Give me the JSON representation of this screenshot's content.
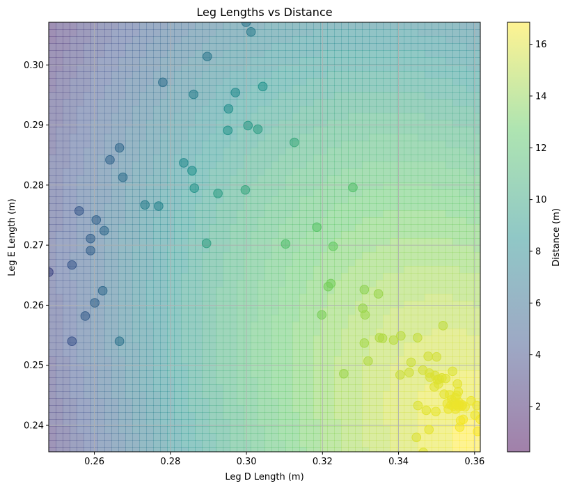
{
  "chart_data": {
    "type": "scatter",
    "title": "Leg Lengths vs Distance",
    "xlabel": "Leg D Length (m)",
    "ylabel": "Leg E Length (m)",
    "colorbar_label": "Distance (m)",
    "xlim": [
      0.248,
      0.3615
    ],
    "ylim": [
      0.2356,
      0.3071
    ],
    "clim": [
      0.25,
      16.85
    ],
    "x_ticks": [
      0.26,
      0.28,
      0.3,
      0.32,
      0.34,
      0.36
    ],
    "x_tick_labels": [
      "0.26",
      "0.28",
      "0.30",
      "0.32",
      "0.34",
      "0.36"
    ],
    "y_ticks": [
      0.24,
      0.25,
      0.26,
      0.27,
      0.28,
      0.29,
      0.3
    ],
    "y_tick_labels": [
      "0.24",
      "0.25",
      "0.26",
      "0.27",
      "0.28",
      "0.29",
      "0.30"
    ],
    "colorbar_ticks": [
      2,
      4,
      6,
      8,
      10,
      12,
      14,
      16
    ],
    "colorbar_tick_labels": [
      "2",
      "4",
      "6",
      "8",
      "10",
      "12",
      "14",
      "16"
    ],
    "colormap": "viridis",
    "colormap_stops": [
      "#440154",
      "#3b528b",
      "#21908d",
      "#5dc963",
      "#fde725"
    ],
    "grid": true,
    "points": [
      {
        "x": 0.248,
        "y": 0.2655
      },
      {
        "x": 0.2541,
        "y": 0.254
      },
      {
        "x": 0.2541,
        "y": 0.2667
      },
      {
        "x": 0.256,
        "y": 0.2757
      },
      {
        "x": 0.2576,
        "y": 0.2582
      },
      {
        "x": 0.259,
        "y": 0.2711
      },
      {
        "x": 0.259,
        "y": 0.2691
      },
      {
        "x": 0.2601,
        "y": 0.2604
      },
      {
        "x": 0.2605,
        "y": 0.2742
      },
      {
        "x": 0.2622,
        "y": 0.2624
      },
      {
        "x": 0.2626,
        "y": 0.2724
      },
      {
        "x": 0.2641,
        "y": 0.2842
      },
      {
        "x": 0.2666,
        "y": 0.2862
      },
      {
        "x": 0.2666,
        "y": 0.254
      },
      {
        "x": 0.2675,
        "y": 0.2813
      },
      {
        "x": 0.2733,
        "y": 0.2767
      },
      {
        "x": 0.2769,
        "y": 0.2765
      },
      {
        "x": 0.278,
        "y": 0.2971
      },
      {
        "x": 0.2835,
        "y": 0.2837
      },
      {
        "x": 0.2857,
        "y": 0.2824
      },
      {
        "x": 0.2861,
        "y": 0.2951
      },
      {
        "x": 0.2863,
        "y": 0.2795
      },
      {
        "x": 0.2895,
        "y": 0.2703
      },
      {
        "x": 0.2897,
        "y": 0.3014
      },
      {
        "x": 0.2925,
        "y": 0.2786
      },
      {
        "x": 0.2951,
        "y": 0.2891
      },
      {
        "x": 0.2953,
        "y": 0.2927
      },
      {
        "x": 0.2971,
        "y": 0.2954
      },
      {
        "x": 0.2997,
        "y": 0.2792
      },
      {
        "x": 0.2999,
        "y": 0.3071
      },
      {
        "x": 0.3004,
        "y": 0.2899
      },
      {
        "x": 0.3012,
        "y": 0.3055
      },
      {
        "x": 0.303,
        "y": 0.2893
      },
      {
        "x": 0.3043,
        "y": 0.2964
      },
      {
        "x": 0.3103,
        "y": 0.2702
      },
      {
        "x": 0.3126,
        "y": 0.2871
      },
      {
        "x": 0.3185,
        "y": 0.273
      },
      {
        "x": 0.3198,
        "y": 0.2584
      },
      {
        "x": 0.3215,
        "y": 0.2631
      },
      {
        "x": 0.3222,
        "y": 0.2636
      },
      {
        "x": 0.3228,
        "y": 0.2698
      },
      {
        "x": 0.3256,
        "y": 0.2486
      },
      {
        "x": 0.328,
        "y": 0.2796
      },
      {
        "x": 0.3306,
        "y": 0.2595
      },
      {
        "x": 0.331,
        "y": 0.2626
      },
      {
        "x": 0.331,
        "y": 0.2537
      },
      {
        "x": 0.3312,
        "y": 0.2584
      },
      {
        "x": 0.332,
        "y": 0.2507
      },
      {
        "x": 0.3347,
        "y": 0.2619
      },
      {
        "x": 0.335,
        "y": 0.2546
      },
      {
        "x": 0.3358,
        "y": 0.2545
      },
      {
        "x": 0.3387,
        "y": 0.2542
      },
      {
        "x": 0.3404,
        "y": 0.2484
      },
      {
        "x": 0.3406,
        "y": 0.2549
      },
      {
        "x": 0.3428,
        "y": 0.2488
      },
      {
        "x": 0.3433,
        "y": 0.2505
      },
      {
        "x": 0.3447,
        "y": 0.238
      },
      {
        "x": 0.345,
        "y": 0.2546
      },
      {
        "x": 0.3451,
        "y": 0.2433
      },
      {
        "x": 0.3464,
        "y": 0.2492
      },
      {
        "x": 0.3465,
        "y": 0.2355
      },
      {
        "x": 0.3473,
        "y": 0.2425
      },
      {
        "x": 0.3478,
        "y": 0.2515
      },
      {
        "x": 0.348,
        "y": 0.2393
      },
      {
        "x": 0.3481,
        "y": 0.2487
      },
      {
        "x": 0.3483,
        "y": 0.248
      },
      {
        "x": 0.3494,
        "y": 0.2464
      },
      {
        "x": 0.3496,
        "y": 0.2483
      },
      {
        "x": 0.3498,
        "y": 0.2423
      },
      {
        "x": 0.35,
        "y": 0.2514
      },
      {
        "x": 0.3502,
        "y": 0.2476
      },
      {
        "x": 0.3505,
        "y": 0.2469
      },
      {
        "x": 0.3507,
        "y": 0.2477
      },
      {
        "x": 0.3514,
        "y": 0.2479
      },
      {
        "x": 0.3517,
        "y": 0.2566
      },
      {
        "x": 0.352,
        "y": 0.2452
      },
      {
        "x": 0.3524,
        "y": 0.2478
      },
      {
        "x": 0.3528,
        "y": 0.2436
      },
      {
        "x": 0.3531,
        "y": 0.2427
      },
      {
        "x": 0.3534,
        "y": 0.2451
      },
      {
        "x": 0.3538,
        "y": 0.2434
      },
      {
        "x": 0.354,
        "y": 0.2443
      },
      {
        "x": 0.3542,
        "y": 0.249
      },
      {
        "x": 0.3544,
        "y": 0.2432
      },
      {
        "x": 0.3547,
        "y": 0.2437
      },
      {
        "x": 0.3549,
        "y": 0.2446
      },
      {
        "x": 0.355,
        "y": 0.2427
      },
      {
        "x": 0.3552,
        "y": 0.2434
      },
      {
        "x": 0.3553,
        "y": 0.245
      },
      {
        "x": 0.3555,
        "y": 0.2469
      },
      {
        "x": 0.3556,
        "y": 0.2434
      },
      {
        "x": 0.3557,
        "y": 0.2456
      },
      {
        "x": 0.3558,
        "y": 0.2431
      },
      {
        "x": 0.3559,
        "y": 0.2438
      },
      {
        "x": 0.356,
        "y": 0.2434
      },
      {
        "x": 0.3561,
        "y": 0.2397
      },
      {
        "x": 0.3563,
        "y": 0.2408
      },
      {
        "x": 0.3566,
        "y": 0.2432
      },
      {
        "x": 0.3568,
        "y": 0.2434
      },
      {
        "x": 0.357,
        "y": 0.241
      },
      {
        "x": 0.3575,
        "y": 0.2431
      },
      {
        "x": 0.3591,
        "y": 0.2441
      },
      {
        "x": 0.3601,
        "y": 0.2417
      },
      {
        "x": 0.3606,
        "y": 0.2433
      },
      {
        "x": 0.3608,
        "y": 0.239
      },
      {
        "x": 0.3615,
        "y": 0.241
      }
    ]
  }
}
